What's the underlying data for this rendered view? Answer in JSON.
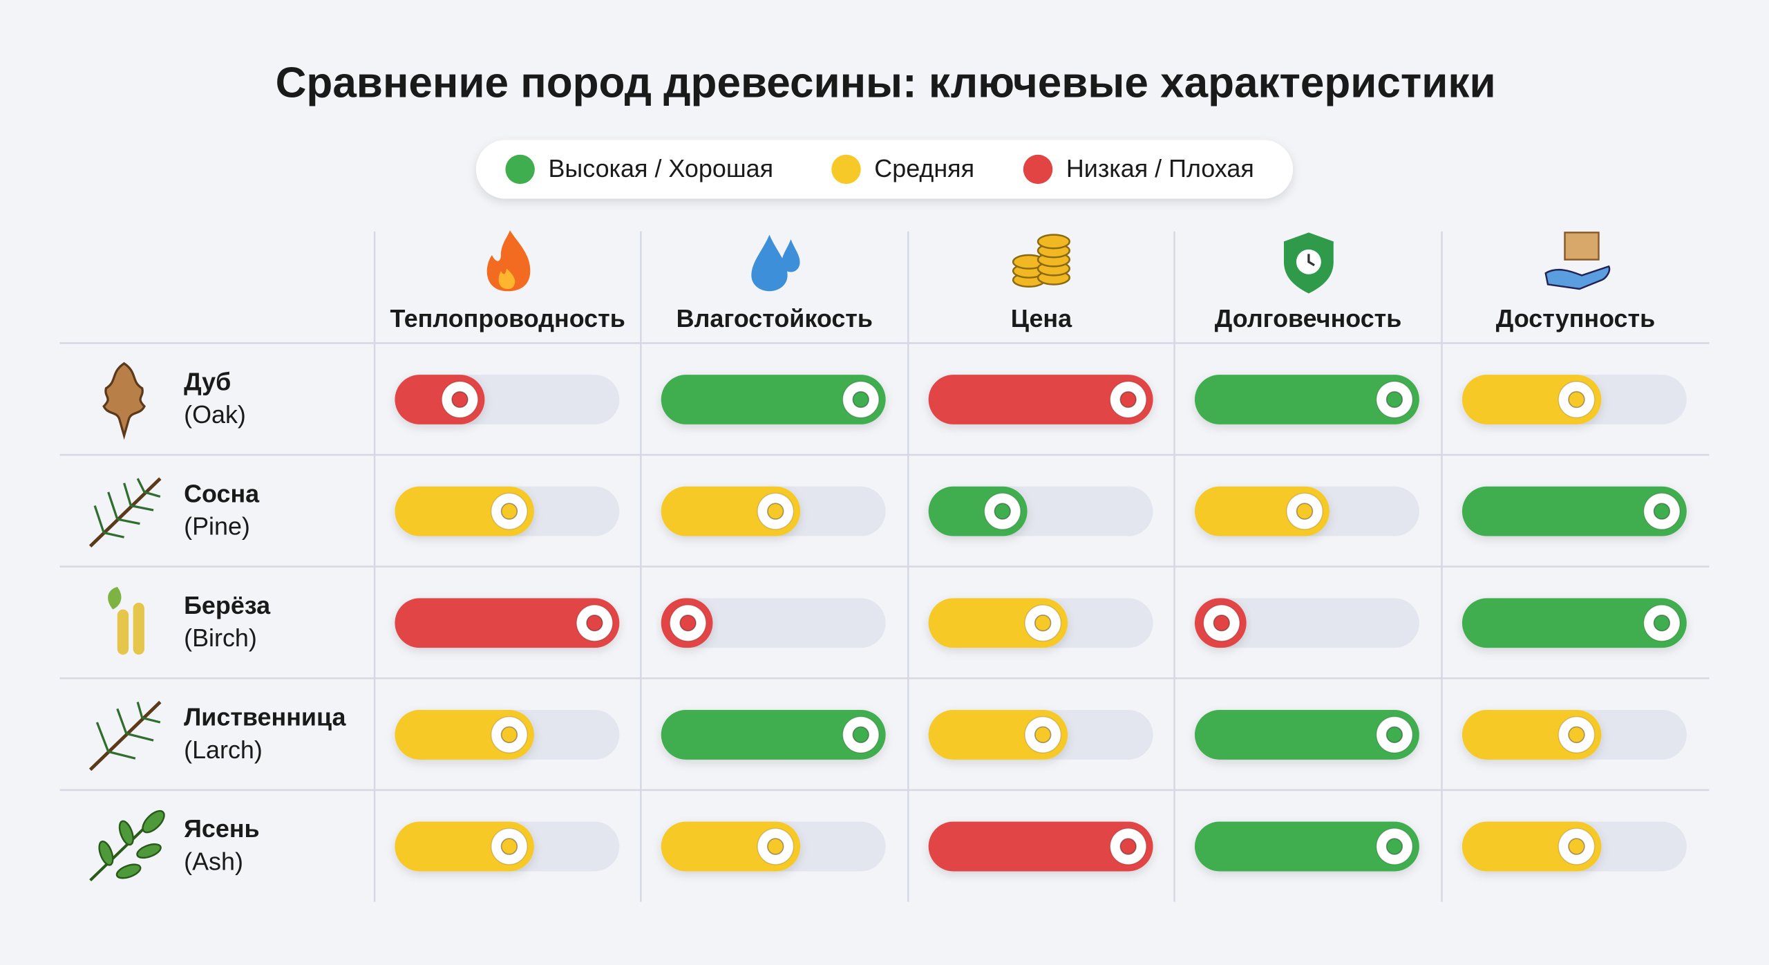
{
  "title": "Сравнение пород древесины: ключевые характеристики",
  "legend": [
    {
      "label": "Высокая / Хорошая",
      "color": "#3fae4f"
    },
    {
      "label": "Средняя",
      "color": "#f7c928"
    },
    {
      "label": "Низкая / Плохая",
      "color": "#e24444"
    }
  ],
  "table": {
    "columns": [
      "Теплопроводность",
      "Влагостойкость",
      "Цена",
      "Долговечность",
      "Доступность"
    ],
    "rows": [
      {
        "name": "Дуб",
        "latin": "(Oak)",
        "cells": [
          {
            "value": 40,
            "level": 2
          },
          {
            "value": 100,
            "level": 0
          },
          {
            "value": 100,
            "level": 2
          },
          {
            "value": 100,
            "level": 0
          },
          {
            "value": 62,
            "level": 1
          }
        ]
      },
      {
        "name": "Сосна",
        "latin": "(Pine)",
        "cells": [
          {
            "value": 62,
            "level": 1
          },
          {
            "value": 62,
            "level": 1
          },
          {
            "value": 44,
            "level": 0
          },
          {
            "value": 60,
            "level": 1
          },
          {
            "value": 100,
            "level": 0
          }
        ]
      },
      {
        "name": "Берёза",
        "latin": "(Birch)",
        "cells": [
          {
            "value": 100,
            "level": 2
          },
          {
            "value": 23,
            "level": 2
          },
          {
            "value": 62,
            "level": 1
          },
          {
            "value": 23,
            "level": 2
          },
          {
            "value": 100,
            "level": 0
          }
        ]
      },
      {
        "name": "Лиственница",
        "latin": "(Larch)",
        "cells": [
          {
            "value": 62,
            "level": 1
          },
          {
            "value": 100,
            "level": 0
          },
          {
            "value": 62,
            "level": 1
          },
          {
            "value": 100,
            "level": 0
          },
          {
            "value": 62,
            "level": 1
          }
        ]
      },
      {
        "name": "Ясень",
        "latin": "(Ash)",
        "cells": [
          {
            "value": 62,
            "level": 1
          },
          {
            "value": 62,
            "level": 1
          },
          {
            "value": 100,
            "level": 2
          },
          {
            "value": 100,
            "level": 0
          },
          {
            "value": 62,
            "level": 1
          }
        ]
      }
    ]
  }
}
